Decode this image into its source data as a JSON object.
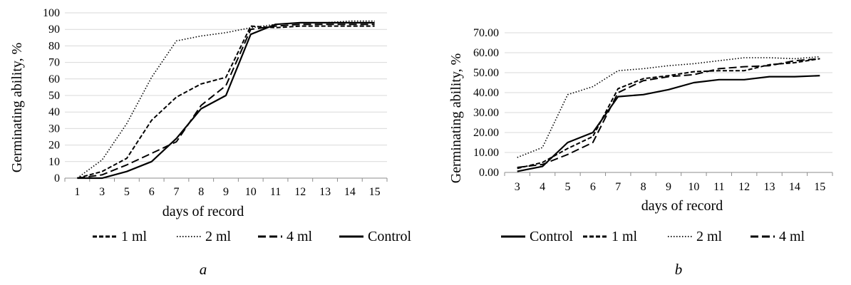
{
  "chart_data": [
    {
      "type": "line",
      "panel_label": "a",
      "xlabel": "days of record",
      "ylabel": "Germinating ability, %",
      "categories": [
        "1",
        "3",
        "5",
        "6",
        "7",
        "8",
        "9",
        "10",
        "11",
        "12",
        "13",
        "14",
        "15"
      ],
      "ylim": [
        0,
        100
      ],
      "yticks": [
        "0",
        "10",
        "20",
        "30",
        "40",
        "50",
        "60",
        "70",
        "80",
        "90",
        "100"
      ],
      "grid": true,
      "legend_position": "bottom",
      "series": [
        {
          "name": "1 ml",
          "dash": "dashed",
          "values": [
            0,
            4,
            12,
            35,
            49,
            57,
            61,
            92,
            91,
            92,
            92,
            92,
            92
          ]
        },
        {
          "name": "2 ml",
          "dash": "dotted",
          "values": [
            0,
            11,
            33,
            61,
            83,
            86,
            88,
            91,
            93,
            94,
            94,
            95,
            95
          ]
        },
        {
          "name": "4 ml",
          "dash": "longdash",
          "values": [
            0,
            2,
            8,
            15,
            22,
            44,
            56,
            90,
            92,
            93,
            93,
            93,
            93
          ]
        },
        {
          "name": "Control",
          "dash": "solid",
          "values": [
            0,
            0,
            4,
            10,
            24,
            42,
            50,
            87,
            93,
            94,
            94,
            94,
            94
          ]
        }
      ]
    },
    {
      "type": "line",
      "panel_label": "b",
      "xlabel": "days of record",
      "ylabel": "Germinating ability, %",
      "categories": [
        "3",
        "4",
        "5",
        "6",
        "7",
        "8",
        "9",
        "10",
        "11",
        "12",
        "13",
        "14",
        "15"
      ],
      "ylim": [
        0,
        70
      ],
      "yticks": [
        "0.00",
        "10.00",
        "20.00",
        "30.00",
        "40.00",
        "50.00",
        "60.00",
        "70.00"
      ],
      "grid": true,
      "legend_position": "bottom",
      "series": [
        {
          "name": "Control",
          "dash": "solid",
          "values": [
            0.5,
            3,
            15,
            20,
            38,
            39,
            41.5,
            45,
            46.5,
            46.5,
            48,
            48,
            48.5
          ]
        },
        {
          "name": "1 ml",
          "dash": "dashed",
          "values": [
            2,
            5,
            12,
            18,
            42,
            47,
            48.5,
            50.5,
            51,
            51,
            54,
            55,
            57
          ]
        },
        {
          "name": "2 ml",
          "dash": "dotted",
          "values": [
            7.5,
            12.5,
            39,
            43,
            51,
            52,
            53.5,
            54.5,
            56,
            57.5,
            57.5,
            57,
            58
          ]
        },
        {
          "name": "4 ml",
          "dash": "longdash",
          "values": [
            2.5,
            4,
            9,
            15,
            40,
            46,
            48,
            49,
            52,
            53,
            53.5,
            56,
            57
          ]
        }
      ]
    }
  ]
}
